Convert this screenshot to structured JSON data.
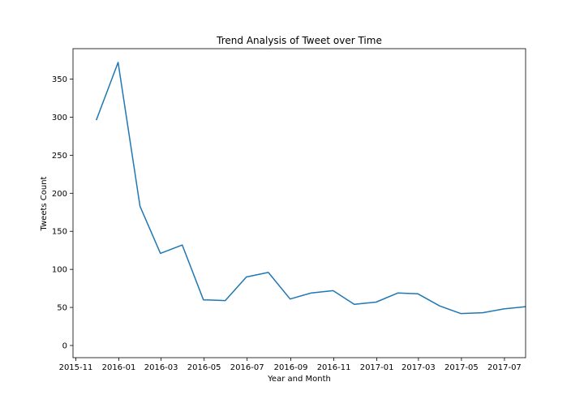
{
  "chart_data": {
    "type": "line",
    "title": "Trend Analysis of Tweet over Time",
    "xlabel": "Year and Month",
    "ylabel": "Tweets Count",
    "x_ticks": [
      "2015-11",
      "2016-01",
      "2016-03",
      "2016-05",
      "2016-07",
      "2016-09",
      "2016-11",
      "2017-01",
      "2017-03",
      "2017-05",
      "2017-07"
    ],
    "y_ticks": [
      0,
      50,
      100,
      150,
      200,
      250,
      300,
      350
    ],
    "xlim": [
      "2015-10-28",
      "2017-07-31"
    ],
    "ylim": [
      -16,
      390
    ],
    "grid": false,
    "line_color": "#1f77b4",
    "x": [
      "2015-11-30",
      "2015-12-31",
      "2016-01-31",
      "2016-02-29",
      "2016-03-31",
      "2016-04-30",
      "2016-05-31",
      "2016-06-30",
      "2016-07-31",
      "2016-08-31",
      "2016-09-30",
      "2016-10-31",
      "2016-11-30",
      "2016-12-31",
      "2017-01-31",
      "2017-02-28",
      "2017-03-31",
      "2017-04-30",
      "2017-05-31",
      "2017-06-30",
      "2017-07-31"
    ],
    "y": [
      296,
      372,
      183,
      121,
      132,
      60,
      59,
      90,
      96,
      61,
      69,
      72,
      54,
      57,
      69,
      68,
      52,
      42,
      43,
      48,
      51
    ]
  }
}
